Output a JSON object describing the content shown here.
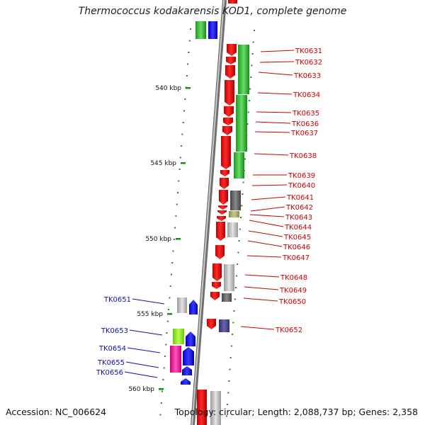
{
  "title": "Thermococcus kodakarensis KOD1, complete genome",
  "footer": {
    "accession": "Accession: NC_006624",
    "topology": "Topology: circular; Length: 2,088,737 bp; Genes: 2,358"
  },
  "colors": {
    "backbone": "#8a8a8a",
    "right_labels": "#cc0000",
    "left_labels": "#1010aa",
    "tick": "#1a8a1a"
  },
  "scale_labels": [
    "540 kbp",
    "545 kbp",
    "550 kbp",
    "555 kbp",
    "560 kbp"
  ],
  "genes_right": [
    "TK0631",
    "TK0632",
    "TK0633",
    "TK0634",
    "TK0635",
    "TK0636",
    "TK0637",
    "TK0638",
    "TK0639",
    "TK0640",
    "TK0641",
    "TK0642",
    "TK0643",
    "TK0644",
    "TK0645",
    "TK0646",
    "TK0647",
    "TK0648",
    "TK0649",
    "TK0650",
    "TK0652"
  ],
  "genes_left": [
    "TK0651",
    "TK0653",
    "TK0654",
    "TK0655",
    "TK0656"
  ]
}
